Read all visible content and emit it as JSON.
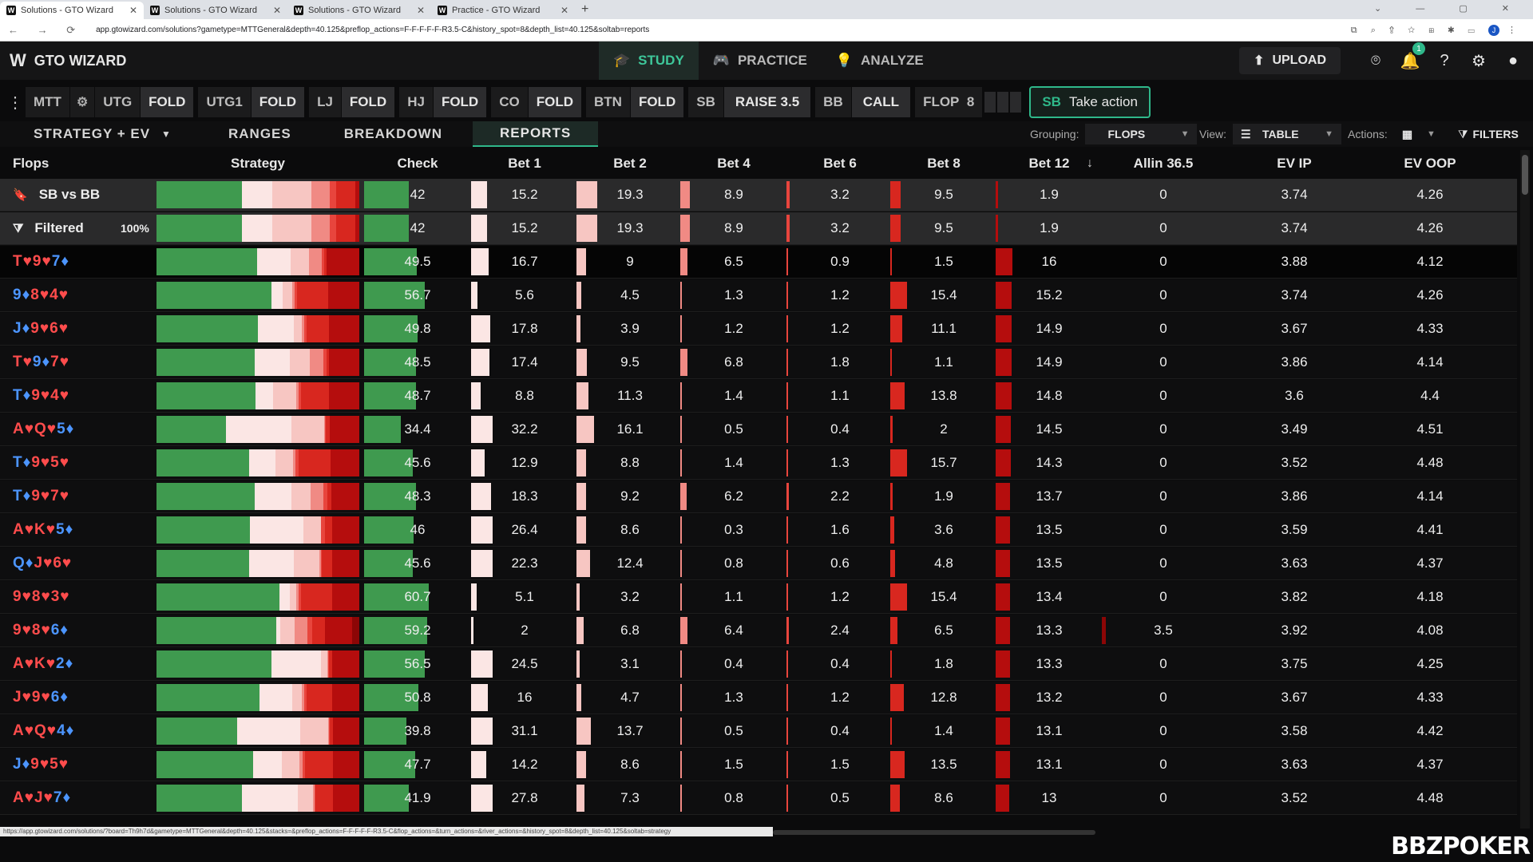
{
  "browser": {
    "tabs": [
      "Solutions - GTO Wizard",
      "Solutions - GTO Wizard",
      "Solutions - GTO Wizard",
      "Practice - GTO Wizard"
    ],
    "url": "app.gtowizard.com/solutions?gametype=MTTGeneral&depth=40.125&preflop_actions=F-F-F-F-F-R3.5-C&history_spot=8&depth_list=40.125&soltab=reports",
    "profile_letter": "J",
    "status_url": "https://app.gtowizard.com/solutions/?board=Th9h7d&gametype=MTTGeneral&depth=40.125&stacks=&preflop_actions=F-F-F-F-F-R3.5-C&flop_actions=&turn_actions=&river_actions=&history_spot=8&depth_list=40.125&soltab=strategy"
  },
  "app": {
    "logo": "GTO WIZARD",
    "nav": [
      {
        "label": "STUDY",
        "icon": "graduation-cap-icon",
        "active": true
      },
      {
        "label": "PRACTICE",
        "icon": "gamepad-icon",
        "active": false
      },
      {
        "label": "ANALYZE",
        "icon": "lightbulb-icon",
        "active": false
      }
    ],
    "upload_label": "UPLOAD",
    "notification_count": "1"
  },
  "action_bar": {
    "game": "MTT",
    "positions": [
      {
        "pos": "UTG",
        "action": "FOLD"
      },
      {
        "pos": "UTG1",
        "action": "FOLD"
      },
      {
        "pos": "LJ",
        "action": "FOLD"
      },
      {
        "pos": "HJ",
        "action": "FOLD"
      },
      {
        "pos": "CO",
        "action": "FOLD"
      },
      {
        "pos": "BTN",
        "action": "FOLD"
      },
      {
        "pos": "SB",
        "action": "RAISE 3.5"
      },
      {
        "pos": "BB",
        "action": "CALL"
      }
    ],
    "flop_label": "FLOP",
    "flop_pot": "8",
    "take_action_pos": "SB",
    "take_action_label": "Take action"
  },
  "subtabs": [
    "STRATEGY + EV",
    "RANGES",
    "BREAKDOWN",
    "REPORTS"
  ],
  "active_subtab": "REPORTS",
  "controls": {
    "grouping_label": "Grouping:",
    "grouping_value": "FLOPS",
    "view_label": "View:",
    "view_value": "TABLE",
    "actions_label": "Actions:",
    "filters_label": "FILTERS"
  },
  "table": {
    "headers": [
      "Flops",
      "Strategy",
      "Check",
      "Bet 1",
      "Bet 2",
      "Bet 4",
      "Bet 6",
      "Bet 8",
      "Bet 12",
      "Allin 36.5",
      "EV IP",
      "EV OOP"
    ],
    "sort_indicator": "↓",
    "summary_rows": [
      {
        "label": "SB vs BB",
        "pct": "",
        "values": [
          "42",
          "15.2",
          "19.3",
          "8.9",
          "3.2",
          "9.5",
          "1.9",
          "0",
          "3.74",
          "4.26"
        ]
      },
      {
        "label": "Filtered",
        "pct": "100%",
        "values": [
          "42",
          "15.2",
          "19.3",
          "8.9",
          "3.2",
          "9.5",
          "1.9",
          "0",
          "3.74",
          "4.26"
        ]
      }
    ],
    "rows": [
      {
        "cards": [
          [
            "T",
            "h"
          ],
          [
            "9",
            "h"
          ],
          [
            "7",
            "d"
          ]
        ],
        "values": [
          "49.5",
          "16.7",
          "9",
          "6.5",
          "0.9",
          "1.5",
          "16",
          "0",
          "3.88",
          "4.12"
        ]
      },
      {
        "cards": [
          [
            "9",
            "d"
          ],
          [
            "8",
            "h"
          ],
          [
            "4",
            "h"
          ]
        ],
        "values": [
          "56.7",
          "5.6",
          "4.5",
          "1.3",
          "1.2",
          "15.4",
          "15.2",
          "0",
          "3.74",
          "4.26"
        ]
      },
      {
        "cards": [
          [
            "J",
            "d"
          ],
          [
            "9",
            "h"
          ],
          [
            "6",
            "h"
          ]
        ],
        "values": [
          "49.8",
          "17.8",
          "3.9",
          "1.2",
          "1.2",
          "11.1",
          "14.9",
          "0",
          "3.67",
          "4.33"
        ]
      },
      {
        "cards": [
          [
            "T",
            "h"
          ],
          [
            "9",
            "d"
          ],
          [
            "7",
            "h"
          ]
        ],
        "values": [
          "48.5",
          "17.4",
          "9.5",
          "6.8",
          "1.8",
          "1.1",
          "14.9",
          "0",
          "3.86",
          "4.14"
        ]
      },
      {
        "cards": [
          [
            "T",
            "d"
          ],
          [
            "9",
            "h"
          ],
          [
            "4",
            "h"
          ]
        ],
        "values": [
          "48.7",
          "8.8",
          "11.3",
          "1.4",
          "1.1",
          "13.8",
          "14.8",
          "0",
          "3.6",
          "4.4"
        ]
      },
      {
        "cards": [
          [
            "A",
            "h"
          ],
          [
            "Q",
            "h"
          ],
          [
            "5",
            "d"
          ]
        ],
        "values": [
          "34.4",
          "32.2",
          "16.1",
          "0.5",
          "0.4",
          "2",
          "14.5",
          "0",
          "3.49",
          "4.51"
        ]
      },
      {
        "cards": [
          [
            "T",
            "d"
          ],
          [
            "9",
            "h"
          ],
          [
            "5",
            "h"
          ]
        ],
        "values": [
          "45.6",
          "12.9",
          "8.8",
          "1.4",
          "1.3",
          "15.7",
          "14.3",
          "0",
          "3.52",
          "4.48"
        ]
      },
      {
        "cards": [
          [
            "T",
            "d"
          ],
          [
            "9",
            "h"
          ],
          [
            "7",
            "h"
          ]
        ],
        "values": [
          "48.3",
          "18.3",
          "9.2",
          "6.2",
          "2.2",
          "1.9",
          "13.7",
          "0",
          "3.86",
          "4.14"
        ]
      },
      {
        "cards": [
          [
            "A",
            "h"
          ],
          [
            "K",
            "h"
          ],
          [
            "5",
            "d"
          ]
        ],
        "values": [
          "46",
          "26.4",
          "8.6",
          "0.3",
          "1.6",
          "3.6",
          "13.5",
          "0",
          "3.59",
          "4.41"
        ]
      },
      {
        "cards": [
          [
            "Q",
            "d"
          ],
          [
            "J",
            "h"
          ],
          [
            "6",
            "h"
          ]
        ],
        "values": [
          "45.6",
          "22.3",
          "12.4",
          "0.8",
          "0.6",
          "4.8",
          "13.5",
          "0",
          "3.63",
          "4.37"
        ]
      },
      {
        "cards": [
          [
            "9",
            "h"
          ],
          [
            "8",
            "h"
          ],
          [
            "3",
            "h"
          ]
        ],
        "values": [
          "60.7",
          "5.1",
          "3.2",
          "1.1",
          "1.2",
          "15.4",
          "13.4",
          "0",
          "3.82",
          "4.18"
        ]
      },
      {
        "cards": [
          [
            "9",
            "h"
          ],
          [
            "8",
            "h"
          ],
          [
            "6",
            "d"
          ]
        ],
        "values": [
          "59.2",
          "2",
          "6.8",
          "6.4",
          "2.4",
          "6.5",
          "13.3",
          "3.5",
          "3.92",
          "4.08"
        ]
      },
      {
        "cards": [
          [
            "A",
            "h"
          ],
          [
            "K",
            "h"
          ],
          [
            "2",
            "d"
          ]
        ],
        "values": [
          "56.5",
          "24.5",
          "3.1",
          "0.4",
          "0.4",
          "1.8",
          "13.3",
          "0",
          "3.75",
          "4.25"
        ]
      },
      {
        "cards": [
          [
            "J",
            "h"
          ],
          [
            "9",
            "h"
          ],
          [
            "6",
            "d"
          ]
        ],
        "values": [
          "50.8",
          "16",
          "4.7",
          "1.3",
          "1.2",
          "12.8",
          "13.2",
          "0",
          "3.67",
          "4.33"
        ]
      },
      {
        "cards": [
          [
            "A",
            "h"
          ],
          [
            "Q",
            "h"
          ],
          [
            "4",
            "d"
          ]
        ],
        "values": [
          "39.8",
          "31.1",
          "13.7",
          "0.5",
          "0.4",
          "1.4",
          "13.1",
          "0",
          "3.58",
          "4.42"
        ]
      },
      {
        "cards": [
          [
            "J",
            "d"
          ],
          [
            "9",
            "h"
          ],
          [
            "5",
            "h"
          ]
        ],
        "values": [
          "47.7",
          "14.2",
          "8.6",
          "1.5",
          "1.5",
          "13.5",
          "13.1",
          "0",
          "3.63",
          "4.37"
        ]
      },
      {
        "cards": [
          [
            "A",
            "h"
          ],
          [
            "J",
            "h"
          ],
          [
            "7",
            "d"
          ]
        ],
        "values": [
          "41.9",
          "27.8",
          "7.3",
          "0.8",
          "0.5",
          "8.6",
          "13",
          "0",
          "3.52",
          "4.48"
        ]
      }
    ]
  },
  "colors": {
    "check": "#3f9a4f",
    "bet1": "#fbe6e4",
    "bet2": "#f7c6c2",
    "bet4": "#f08a84",
    "bet6": "#e8453d",
    "bet8": "#d8271f",
    "bet12": "#b50d0d",
    "allin": "#8c0606",
    "accent": "#2fb88a",
    "heart": "#ff4c4c",
    "diamond": "#4c95ff"
  },
  "watermark": "BBZPOKER"
}
